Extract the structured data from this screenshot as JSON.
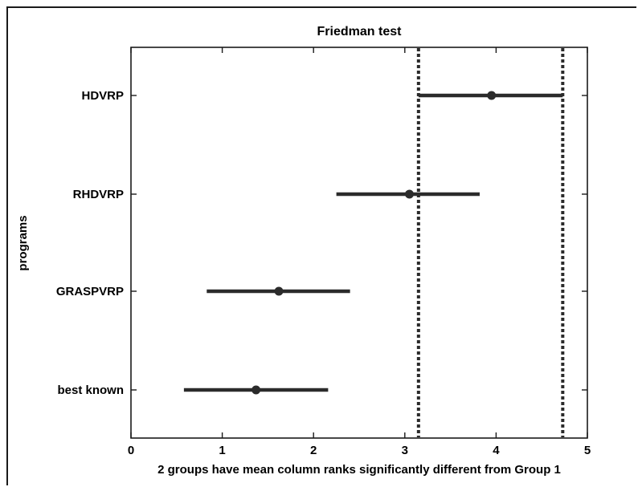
{
  "chart_data": {
    "type": "interval",
    "title": "Friedman test",
    "xlabel": "2 groups have mean column ranks significantly different from Group 1",
    "ylabel": "programs",
    "xlim": [
      0,
      5
    ],
    "xticks": [
      "0",
      "1",
      "2",
      "3",
      "4",
      "5"
    ],
    "grid": false,
    "categories": [
      "HDVRP",
      "RHDVRP",
      "GRASPVRP",
      "best known"
    ],
    "series": [
      {
        "label": "HDVRP",
        "mean": 3.95,
        "low": 3.15,
        "high": 4.73
      },
      {
        "label": "RHDVRP",
        "mean": 3.05,
        "low": 2.25,
        "high": 3.82
      },
      {
        "label": "GRASPVRP",
        "mean": 1.62,
        "low": 0.83,
        "high": 2.4
      },
      {
        "label": "best known",
        "mean": 1.37,
        "low": 0.58,
        "high": 2.16
      }
    ],
    "reference_lines": [
      3.15,
      4.73
    ],
    "colors": {
      "line": "#2b2b2b",
      "reference": "#2b2b2b"
    }
  }
}
